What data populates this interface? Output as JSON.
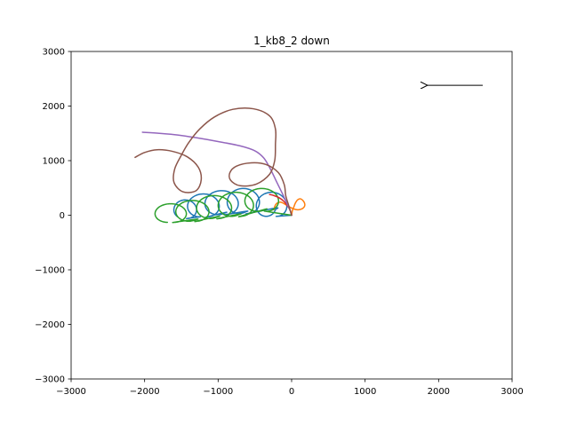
{
  "chart_data": {
    "type": "line",
    "title": "1_kb8_2 down",
    "xlabel": "",
    "ylabel": "",
    "xlim": [
      -3000,
      3000
    ],
    "ylim": [
      -3000,
      3000
    ],
    "x_ticks": [
      -3000,
      -2000,
      -1000,
      0,
      1000,
      2000,
      3000
    ],
    "y_ticks": [
      -3000,
      -2000,
      -1000,
      0,
      1000,
      2000,
      3000
    ],
    "x_tick_labels": [
      "−3000",
      "−2000",
      "−1000",
      "0",
      "1000",
      "2000",
      "3000"
    ],
    "y_tick_labels": [
      "−3000",
      "−2000",
      "−1000",
      "0",
      "1000",
      "2000",
      "3000"
    ],
    "grid": false,
    "arrow": {
      "from": [
        2600,
        2380
      ],
      "to": [
        1850,
        2380
      ],
      "color": "#000000"
    },
    "series": [
      {
        "color": "#1f77b4",
        "loops": [
          {
            "cx": -200,
            "cy": 200,
            "rx": 170,
            "ry": 220,
            "drift": -350,
            "turns": 1.2
          },
          {
            "cx": -600,
            "cy": 260,
            "rx": 190,
            "ry": 230,
            "drift": -250,
            "turns": 1.1
          },
          {
            "cx": -900,
            "cy": 230,
            "rx": 200,
            "ry": 220,
            "drift": -230,
            "turns": 1.1
          },
          {
            "cx": -1150,
            "cy": 180,
            "rx": 190,
            "ry": 210,
            "drift": -200,
            "turns": 1.0
          },
          {
            "cx": -1420,
            "cy": 110,
            "rx": 140,
            "ry": 170,
            "drift": -100,
            "turns": 0.9
          }
        ]
      },
      {
        "color": "#ff7f0e",
        "points": [
          [
            0,
            0
          ],
          [
            10,
            80
          ],
          [
            30,
            150
          ],
          [
            50,
            220
          ],
          [
            80,
            280
          ],
          [
            120,
            300
          ],
          [
            160,
            260
          ],
          [
            180,
            200
          ],
          [
            170,
            150
          ],
          [
            130,
            110
          ],
          [
            80,
            100
          ],
          [
            20,
            120
          ],
          [
            -40,
            160
          ],
          [
            -100,
            210
          ],
          [
            -150,
            240
          ],
          [
            -200,
            220
          ],
          [
            -230,
            160
          ],
          [
            -240,
            100
          ]
        ]
      },
      {
        "color": "#2ca02c",
        "loops": [
          {
            "cx": -350,
            "cy": 280,
            "rx": 200,
            "ry": 210,
            "drift": -250,
            "turns": 1.1
          },
          {
            "cx": -700,
            "cy": 200,
            "rx": 210,
            "ry": 220,
            "drift": -260,
            "turns": 1.1
          },
          {
            "cx": -1000,
            "cy": 150,
            "rx": 210,
            "ry": 210,
            "drift": -240,
            "turns": 1.1
          },
          {
            "cx": -1300,
            "cy": 80,
            "rx": 200,
            "ry": 190,
            "drift": -220,
            "turns": 1.1
          },
          {
            "cx": -1600,
            "cy": 40,
            "rx": 190,
            "ry": 170,
            "drift": -180,
            "turns": 1.0
          }
        ]
      },
      {
        "color": "#d62728",
        "points": [
          [
            0,
            0
          ],
          [
            -20,
            90
          ],
          [
            -60,
            180
          ],
          [
            -110,
            260
          ],
          [
            -170,
            320
          ],
          [
            -240,
            360
          ],
          [
            -300,
            380
          ]
        ]
      },
      {
        "color": "#9467bd",
        "points": [
          [
            0,
            0
          ],
          [
            -20,
            90
          ],
          [
            -60,
            200
          ],
          [
            -120,
            380
          ],
          [
            -200,
            600
          ],
          [
            -290,
            850
          ],
          [
            -380,
            1050
          ],
          [
            -500,
            1180
          ],
          [
            -700,
            1270
          ],
          [
            -1000,
            1350
          ],
          [
            -1300,
            1420
          ],
          [
            -1550,
            1470
          ],
          [
            -1800,
            1500
          ],
          [
            -2030,
            1520
          ]
        ]
      },
      {
        "color": "#8c564b",
        "points": [
          [
            0,
            0
          ],
          [
            -40,
            180
          ],
          [
            -80,
            360
          ],
          [
            -100,
            560
          ],
          [
            -180,
            780
          ],
          [
            -350,
            930
          ],
          [
            -550,
            960
          ],
          [
            -750,
            900
          ],
          [
            -840,
            780
          ],
          [
            -830,
            640
          ],
          [
            -700,
            540
          ],
          [
            -480,
            570
          ],
          [
            -300,
            750
          ],
          [
            -230,
            1000
          ],
          [
            -220,
            1300
          ],
          [
            -220,
            1580
          ],
          [
            -300,
            1820
          ],
          [
            -520,
            1950
          ],
          [
            -800,
            1940
          ],
          [
            -1050,
            1800
          ],
          [
            -1250,
            1580
          ],
          [
            -1400,
            1330
          ],
          [
            -1500,
            1100
          ],
          [
            -1590,
            850
          ],
          [
            -1600,
            600
          ],
          [
            -1480,
            430
          ],
          [
            -1300,
            450
          ],
          [
            -1230,
            650
          ],
          [
            -1270,
            880
          ],
          [
            -1420,
            1070
          ],
          [
            -1620,
            1170
          ],
          [
            -1830,
            1200
          ],
          [
            -2000,
            1150
          ],
          [
            -2130,
            1060
          ]
        ]
      }
    ]
  }
}
